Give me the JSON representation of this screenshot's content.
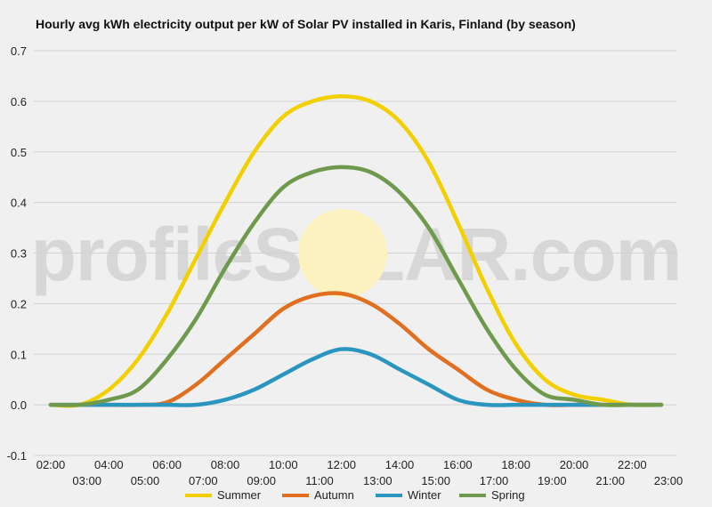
{
  "chart_data": {
    "type": "line",
    "title": "Hourly avg kWh electricity output per kW of Solar PV installed in Karis, Finland (by season)",
    "xlabel": "",
    "ylabel": "",
    "ylim": [
      -0.1,
      0.7
    ],
    "yticks": [
      "-0.1",
      "0.0",
      "0.1",
      "0.2",
      "0.3",
      "0.4",
      "0.5",
      "0.6",
      "0.7"
    ],
    "grid": true,
    "legend_position": "bottom",
    "categories": [
      "02:00",
      "03:00",
      "04:00",
      "05:00",
      "06:00",
      "07:00",
      "08:00",
      "09:00",
      "10:00",
      "11:00",
      "12:00",
      "13:00",
      "14:00",
      "15:00",
      "16:00",
      "17:00",
      "18:00",
      "19:00",
      "20:00",
      "21:00",
      "22:00",
      "23:00"
    ],
    "series": [
      {
        "name": "Summer",
        "color": "#f2d000",
        "values": [
          0.0,
          0.0,
          0.03,
          0.09,
          0.18,
          0.29,
          0.4,
          0.5,
          0.57,
          0.6,
          0.61,
          0.6,
          0.56,
          0.48,
          0.36,
          0.23,
          0.12,
          0.05,
          0.02,
          0.01,
          0.0,
          0.0
        ]
      },
      {
        "name": "Autumn",
        "color": "#e07020",
        "values": [
          0.0,
          0.0,
          0.0,
          0.0,
          0.005,
          0.04,
          0.09,
          0.14,
          0.19,
          0.215,
          0.22,
          0.2,
          0.16,
          0.11,
          0.07,
          0.03,
          0.01,
          0.0,
          0.0,
          0.0,
          0.0,
          0.0
        ]
      },
      {
        "name": "Winter",
        "color": "#2a96c0",
        "values": [
          0.0,
          0.0,
          0.0,
          0.0,
          0.0,
          0.0,
          0.01,
          0.03,
          0.06,
          0.09,
          0.11,
          0.1,
          0.07,
          0.04,
          0.01,
          0.0,
          0.0,
          0.0,
          0.0,
          0.0,
          0.0,
          0.0
        ]
      },
      {
        "name": "Spring",
        "color": "#6f9a4e",
        "values": [
          0.0,
          0.0,
          0.01,
          0.03,
          0.09,
          0.17,
          0.27,
          0.36,
          0.43,
          0.46,
          0.47,
          0.46,
          0.42,
          0.35,
          0.25,
          0.15,
          0.07,
          0.02,
          0.01,
          0.0,
          0.0,
          0.0
        ]
      }
    ]
  },
  "watermark": {
    "text": "profileSOLAR.com",
    "sun_color": "#fbf2c0"
  }
}
